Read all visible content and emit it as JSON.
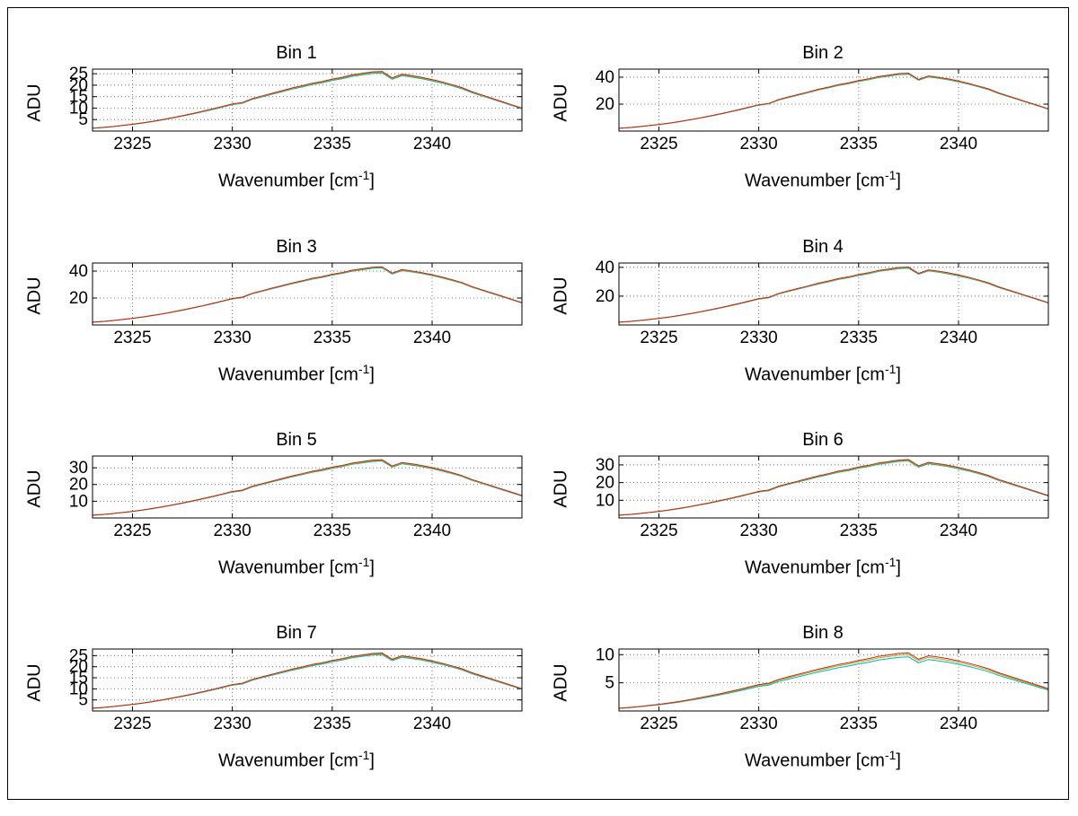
{
  "figure": {
    "background": "#ffffff",
    "frame_color": "#000000"
  },
  "chart_data": {
    "type": "line",
    "title": "",
    "ylabel": "ADU",
    "xlabel_prefix": "Wavenumber [cm",
    "xlabel_sup": "-1",
    "xlabel_suffix": "]",
    "xlim": [
      2323,
      2344.5
    ],
    "x_ticks": [
      2325,
      2330,
      2335,
      2340
    ],
    "grid": true,
    "legend": "none",
    "x": [
      2323,
      2323.5,
      2324,
      2324.5,
      2325,
      2325.5,
      2326,
      2326.5,
      2327,
      2327.5,
      2328,
      2328.5,
      2329,
      2329.5,
      2330,
      2330.5,
      2331,
      2331.5,
      2332,
      2332.5,
      2333,
      2333.5,
      2334,
      2334.5,
      2335,
      2335.5,
      2336,
      2336.5,
      2337,
      2337.5,
      2338,
      2338.5,
      2339,
      2339.5,
      2340,
      2340.5,
      2341,
      2341.5,
      2342,
      2342.5,
      2343,
      2343.5,
      2344,
      2344.5
    ],
    "profile": [
      0.048,
      0.06,
      0.076,
      0.094,
      0.114,
      0.137,
      0.163,
      0.192,
      0.224,
      0.257,
      0.293,
      0.331,
      0.37,
      0.412,
      0.455,
      0.478,
      0.545,
      0.59,
      0.634,
      0.678,
      0.722,
      0.76,
      0.802,
      0.832,
      0.872,
      0.902,
      0.942,
      0.966,
      0.992,
      1.0,
      0.892,
      0.952,
      0.928,
      0.9,
      0.864,
      0.824,
      0.778,
      0.728,
      0.66,
      0.605,
      0.55,
      0.495,
      0.44,
      0.385
    ],
    "series": [
      {
        "key": "cyan",
        "color": "#00b4b4"
      },
      {
        "key": "olive",
        "color": "#a8b020"
      },
      {
        "key": "red",
        "color": "#cc2211"
      }
    ],
    "bins": [
      {
        "title": "Bin 1",
        "ylim": [
          0,
          27
        ],
        "y_ticks": [
          5,
          10,
          15,
          20,
          25
        ],
        "peaks": {
          "cyan": 25.3,
          "olive": 25.7,
          "red": 26.0
        }
      },
      {
        "title": "Bin 2",
        "ylim": [
          0,
          46
        ],
        "y_ticks": [
          20,
          40
        ],
        "peaks": {
          "cyan": 42.2,
          "olive": 42.6,
          "red": 43.0
        }
      },
      {
        "title": "Bin 3",
        "ylim": [
          0,
          46
        ],
        "y_ticks": [
          20,
          40
        ],
        "peaks": {
          "cyan": 42.4,
          "olive": 42.8,
          "red": 43.2
        }
      },
      {
        "title": "Bin 4",
        "ylim": [
          0,
          43
        ],
        "y_ticks": [
          20,
          40
        ],
        "peaks": {
          "cyan": 39.4,
          "olive": 39.8,
          "red": 40.2
        }
      },
      {
        "title": "Bin 5",
        "ylim": [
          0,
          37
        ],
        "y_ticks": [
          10,
          20,
          30
        ],
        "peaks": {
          "cyan": 34.0,
          "olive": 34.4,
          "red": 34.8
        }
      },
      {
        "title": "Bin 6",
        "ylim": [
          0,
          35
        ],
        "y_ticks": [
          10,
          20,
          30
        ],
        "peaks": {
          "cyan": 32.2,
          "olive": 32.6,
          "red": 33.0
        }
      },
      {
        "title": "Bin 7",
        "ylim": [
          0,
          28
        ],
        "y_ticks": [
          5,
          10,
          15,
          20,
          25
        ],
        "peaks": {
          "cyan": 25.5,
          "olive": 25.9,
          "red": 26.2
        }
      },
      {
        "title": "Bin 8",
        "ylim": [
          0,
          11
        ],
        "y_ticks": [
          5,
          10
        ],
        "peaks": {
          "cyan": 9.6,
          "olive": 10.0,
          "red": 10.3
        }
      }
    ]
  }
}
